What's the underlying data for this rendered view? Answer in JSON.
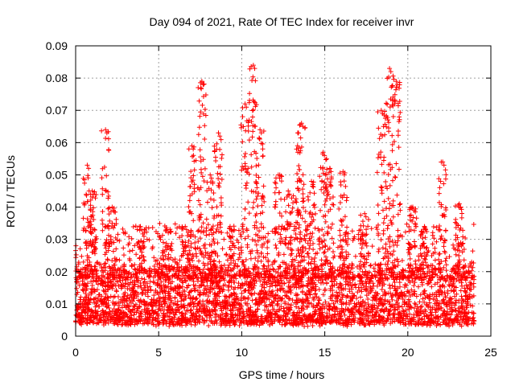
{
  "chart_data": {
    "type": "scatter",
    "title": "Day 094 of 2021, Rate Of TEC Index for receiver invr",
    "xlabel": "GPS time / hours",
    "ylabel": "ROTI / TECUs",
    "xlim": [
      0,
      25
    ],
    "ylim": [
      0,
      0.09
    ],
    "x_ticks": [
      0,
      5,
      10,
      15,
      20,
      25
    ],
    "x_tick_labels": [
      "0",
      "5",
      "10",
      "15",
      "20",
      "25"
    ],
    "y_ticks": [
      0,
      0.01,
      0.02,
      0.03,
      0.04,
      0.05,
      0.06,
      0.07,
      0.08,
      0.09
    ],
    "y_tick_labels": [
      "0",
      "0.01",
      "0.02",
      "0.03",
      "0.04",
      "0.05",
      "0.06",
      "0.07",
      "0.08",
      "0.09"
    ],
    "grid": true,
    "marker": "+",
    "marker_color": "#ff0000",
    "x_data_range": [
      0,
      24
    ],
    "baseline_band": [
      0.003,
      0.02
    ],
    "spikes": [
      {
        "x": 0.7,
        "y": 0.053
      },
      {
        "x": 1.0,
        "y": 0.045
      },
      {
        "x": 1.8,
        "y": 0.064
      },
      {
        "x": 2.2,
        "y": 0.04
      },
      {
        "x": 3.9,
        "y": 0.034
      },
      {
        "x": 5.5,
        "y": 0.033
      },
      {
        "x": 6.6,
        "y": 0.034
      },
      {
        "x": 7.0,
        "y": 0.059
      },
      {
        "x": 7.6,
        "y": 0.079
      },
      {
        "x": 8.1,
        "y": 0.05
      },
      {
        "x": 8.6,
        "y": 0.063
      },
      {
        "x": 9.3,
        "y": 0.034
      },
      {
        "x": 10.2,
        "y": 0.072
      },
      {
        "x": 10.7,
        "y": 0.084
      },
      {
        "x": 11.1,
        "y": 0.064
      },
      {
        "x": 12.2,
        "y": 0.05
      },
      {
        "x": 12.8,
        "y": 0.045
      },
      {
        "x": 13.3,
        "y": 0.058
      },
      {
        "x": 13.6,
        "y": 0.066
      },
      {
        "x": 14.2,
        "y": 0.048
      },
      {
        "x": 14.9,
        "y": 0.057
      },
      {
        "x": 15.3,
        "y": 0.052
      },
      {
        "x": 16.1,
        "y": 0.051
      },
      {
        "x": 17.4,
        "y": 0.038
      },
      {
        "x": 18.4,
        "y": 0.07
      },
      {
        "x": 18.9,
        "y": 0.083
      },
      {
        "x": 19.3,
        "y": 0.079
      },
      {
        "x": 20.3,
        "y": 0.04
      },
      {
        "x": 21.0,
        "y": 0.034
      },
      {
        "x": 22.1,
        "y": 0.054
      },
      {
        "x": 23.1,
        "y": 0.041
      }
    ]
  }
}
